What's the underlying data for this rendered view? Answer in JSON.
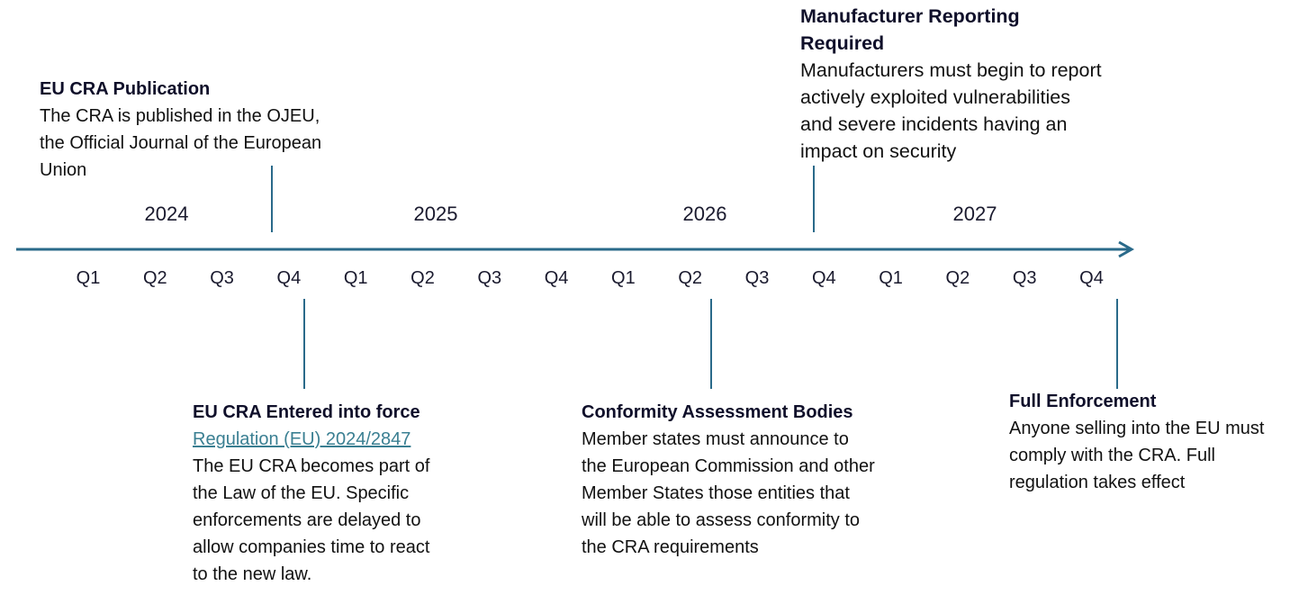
{
  "timeline": {
    "axis_color": "#2a6a8a",
    "years": [
      "2024",
      "2025",
      "2026",
      "2027"
    ],
    "quarters": [
      "Q1",
      "Q2",
      "Q3",
      "Q4",
      "Q1",
      "Q2",
      "Q3",
      "Q4",
      "Q1",
      "Q2",
      "Q3",
      "Q4",
      "Q1",
      "Q2",
      "Q3",
      "Q4"
    ]
  },
  "events": {
    "publication": {
      "title": "EU CRA Publication",
      "lines": [
        "The CRA is published in the OJEU,",
        "the Official Journal of the European",
        "Union"
      ]
    },
    "entered_into_force": {
      "title": "EU CRA Entered into force",
      "link": "Regulation (EU) 2024/2847",
      "lines": [
        "The EU CRA becomes part of",
        "the Law of the EU.  Specific",
        "enforcements are delayed to",
        "allow companies time to react",
        "to the new law."
      ]
    },
    "conformity": {
      "title": "Conformity Assessment Bodies",
      "lines": [
        "Member states must announce to",
        "the European Commission and other",
        "Member States those entities that",
        "will be able to assess conformity to",
        "the CRA requirements"
      ]
    },
    "reporting": {
      "title_lines": [
        "Manufacturer Reporting",
        "Required"
      ],
      "lines": [
        "Manufacturers must begin to report",
        "actively exploited vulnerabilities",
        "and severe incidents having an",
        "impact on security"
      ]
    },
    "full_enforcement": {
      "title": "Full Enforcement",
      "lines": [
        "Anyone selling into the EU must",
        "comply with the CRA.  Full",
        "regulation takes effect"
      ]
    }
  }
}
